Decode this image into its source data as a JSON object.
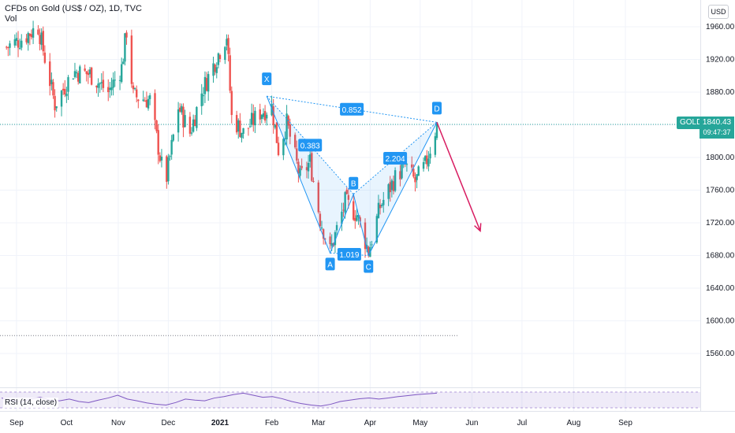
{
  "header": {
    "title": "CFDs on Gold (US$ / OZ), 1D, TVC",
    "indicator": "Vol"
  },
  "currency_button": "USD",
  "price_tag": {
    "symbol": "GOLD",
    "last_price": "1840.43",
    "countdown": "09:47:37"
  },
  "rsi": {
    "label": "RSI (14, close)"
  },
  "colors": {
    "up": "#26a69a",
    "down": "#ef5350",
    "pattern_blue": "#2196f3",
    "projection_arrow": "#d81b60",
    "rsi_line": "#7e57c2"
  },
  "chart_data": {
    "type": "candlestick",
    "title": "CFDs on Gold (US$ / OZ), 1D, TVC",
    "x_ticks": [
      "Sep",
      "Oct",
      "Nov",
      "Dec",
      "2021",
      "Feb",
      "Mar",
      "Apr",
      "May",
      "Jun",
      "Jul",
      "Aug",
      "Sep"
    ],
    "y_ticks": [
      1560,
      1600,
      1640,
      1680,
      1720,
      1760,
      1800,
      1840,
      1880,
      1920,
      1960
    ],
    "ylim": [
      1535,
      1985
    ],
    "close_path": [
      {
        "date": "2020-08-26",
        "close": 1935
      },
      {
        "date": "2020-09-04",
        "close": 1945
      },
      {
        "date": "2020-09-14",
        "close": 1960
      },
      {
        "date": "2020-09-24",
        "close": 1865
      },
      {
        "date": "2020-10-05",
        "close": 1905
      },
      {
        "date": "2020-10-15",
        "close": 1902
      },
      {
        "date": "2020-10-26",
        "close": 1880
      },
      {
        "date": "2020-11-03",
        "close": 1910
      },
      {
        "date": "2020-11-06",
        "close": 1955
      },
      {
        "date": "2020-11-10",
        "close": 1875
      },
      {
        "date": "2020-11-20",
        "close": 1870
      },
      {
        "date": "2020-11-27",
        "close": 1790
      },
      {
        "date": "2020-11-30",
        "close": 1776
      },
      {
        "date": "2020-12-07",
        "close": 1862
      },
      {
        "date": "2020-12-14",
        "close": 1830
      },
      {
        "date": "2020-12-21",
        "close": 1880
      },
      {
        "date": "2021-01-05",
        "close": 1950
      },
      {
        "date": "2021-01-08",
        "close": 1849
      },
      {
        "date": "2021-01-15",
        "close": 1830
      },
      {
        "date": "2021-01-25",
        "close": 1855
      },
      {
        "date": "2021-02-01",
        "close": 1862
      },
      {
        "date": "2021-02-05",
        "close": 1810
      },
      {
        "date": "2021-02-10",
        "close": 1842
      },
      {
        "date": "2021-02-18",
        "close": 1775
      },
      {
        "date": "2021-02-24",
        "close": 1795
      },
      {
        "date": "2021-03-02",
        "close": 1725
      },
      {
        "date": "2021-03-08",
        "close": 1685
      },
      {
        "date": "2021-03-17",
        "close": 1745
      },
      {
        "date": "2021-03-24",
        "close": 1730
      },
      {
        "date": "2021-03-31",
        "close": 1685
      },
      {
        "date": "2021-04-07",
        "close": 1740
      },
      {
        "date": "2021-04-16",
        "close": 1775
      },
      {
        "date": "2021-04-22",
        "close": 1790
      },
      {
        "date": "2021-04-28",
        "close": 1770
      },
      {
        "date": "2021-05-04",
        "close": 1790
      },
      {
        "date": "2021-05-11",
        "close": 1840
      }
    ],
    "current_price": 1840.43,
    "harmonic_pattern": {
      "points": [
        {
          "label": "X",
          "date": "2021-01-29",
          "price": 1875
        },
        {
          "label": "A",
          "date": "2021-03-08",
          "price": 1683
        },
        {
          "label": "B",
          "date": "2021-03-22",
          "price": 1755
        },
        {
          "label": "C",
          "date": "2021-03-31",
          "price": 1680
        },
        {
          "label": "D",
          "date": "2021-05-11",
          "price": 1843
        }
      ],
      "ratios": [
        "0.852",
        "0.383",
        "2.204",
        "1.019"
      ]
    },
    "projection": {
      "from": {
        "date": "2021-05-11",
        "price": 1843
      },
      "to": {
        "date": "2021-06-06",
        "price": 1710
      }
    },
    "support_line": 1582,
    "rsi_series": [
      58,
      52,
      46,
      55,
      60,
      52,
      50,
      55,
      48,
      45,
      52,
      58,
      66,
      55,
      50,
      44,
      40,
      38,
      45,
      55,
      52,
      50,
      58,
      62,
      68,
      72,
      66,
      60,
      62,
      56,
      48,
      42,
      38,
      35,
      40,
      48,
      52,
      56,
      58,
      55,
      58,
      62,
      65,
      68,
      70,
      72
    ]
  }
}
